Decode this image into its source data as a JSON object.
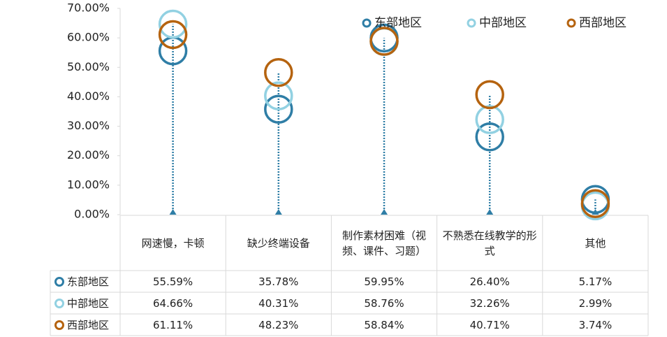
{
  "chart_data": {
    "type": "dot-table",
    "categories": [
      "网速慢，卡顿",
      "缺少终端设备",
      "制作素材困难（视频、课件、习题）",
      "不熟悉在线教学的形式",
      "其他"
    ],
    "series": [
      {
        "name": "东部地区",
        "color": "#2f7ea6",
        "values": [
          55.59,
          35.78,
          59.95,
          26.4,
          5.17
        ],
        "value_labels": [
          "55.59%",
          "35.78%",
          "59.95%",
          "26.40%",
          "5.17%"
        ]
      },
      {
        "name": "中部地区",
        "color": "#92d1e2",
        "values": [
          64.66,
          40.31,
          58.76,
          32.26,
          2.99
        ],
        "value_labels": [
          "64.66%",
          "40.31%",
          "58.76%",
          "32.26%",
          "2.99%"
        ]
      },
      {
        "name": "西部地区",
        "color": "#b5630f",
        "values": [
          61.11,
          48.23,
          58.84,
          40.71,
          3.74
        ],
        "value_labels": [
          "61.11%",
          "48.23%",
          "58.84%",
          "40.71%",
          "3.74%"
        ]
      }
    ],
    "ylim": [
      0,
      70
    ],
    "yticks": [
      {
        "value": 0,
        "label": "0.00%"
      },
      {
        "value": 10,
        "label": "10.00%"
      },
      {
        "value": 20,
        "label": "20.00%"
      },
      {
        "value": 30,
        "label": "30.00%"
      },
      {
        "value": 40,
        "label": "40.00%"
      },
      {
        "value": 50,
        "label": "50.00%"
      },
      {
        "value": 60,
        "label": "60.00%"
      },
      {
        "value": 70,
        "label": "70.00%"
      }
    ],
    "legend": "top-right"
  }
}
